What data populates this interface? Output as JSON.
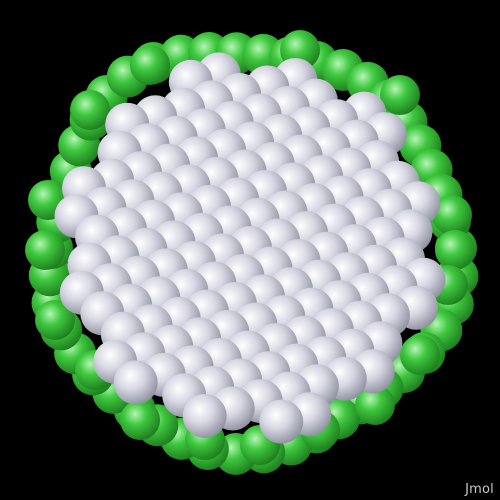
{
  "app": {
    "watermark": "Jmol"
  },
  "scene": {
    "background": "#000000",
    "atoms": {
      "core": {
        "element": "silver-gray",
        "color": "#c9cad6"
      },
      "shell": {
        "element": "green",
        "color": "#3cc23c"
      }
    }
  }
}
